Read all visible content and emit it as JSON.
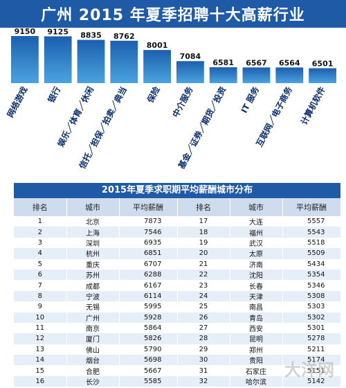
{
  "title": "广州 2015 年夏季招聘十大高薪行业",
  "chart_data": {
    "type": "bar",
    "title": "广州 2015 年夏季招聘十大高薪行业",
    "categories": [
      "网络游戏",
      "银行",
      "娱乐／体育／休闲",
      "信托／担保／拍卖／典当",
      "保险",
      "中介服务",
      "基金／证券／期货／投资",
      "IT 服务",
      "互联网／电子商务",
      "计算机软件"
    ],
    "values": [
      9150,
      9125,
      8835,
      8762,
      8001,
      7084,
      6581,
      6567,
      6564,
      6501
    ],
    "colors": {
      "bar_top": "#1c5fae",
      "bar_bottom": "#4aa3df",
      "label": "#0b2f6e"
    }
  },
  "table": {
    "title": "2015年夏季求职期平均薪酬城市分布",
    "headers": [
      "排名",
      "城市",
      "平均薪酬",
      "排名",
      "城市",
      "平均薪酬"
    ],
    "rows": [
      [
        "1",
        "北京",
        "7873",
        "17",
        "大连",
        "5557"
      ],
      [
        "2",
        "上海",
        "7546",
        "18",
        "福州",
        "5543"
      ],
      [
        "3",
        "深圳",
        "6935",
        "19",
        "武汉",
        "5518"
      ],
      [
        "4",
        "杭州",
        "6851",
        "20",
        "太原",
        "5509"
      ],
      [
        "5",
        "重庆",
        "6707",
        "21",
        "济南",
        "5434"
      ],
      [
        "6",
        "苏州",
        "6288",
        "22",
        "沈阳",
        "5354"
      ],
      [
        "7",
        "成都",
        "6167",
        "23",
        "长春",
        "5346"
      ],
      [
        "8",
        "宁波",
        "6114",
        "24",
        "天津",
        "5308"
      ],
      [
        "9",
        "无锡",
        "5995",
        "25",
        "南昌",
        "5303"
      ],
      [
        "10",
        "广州",
        "5928",
        "26",
        "青岛",
        "5302"
      ],
      [
        "11",
        "南京",
        "5864",
        "27",
        "西安",
        "5301"
      ],
      [
        "12",
        "厦门",
        "5826",
        "28",
        "昆明",
        "5278"
      ],
      [
        "13",
        "佛山",
        "5790",
        "29",
        "郑州",
        "5211"
      ],
      [
        "14",
        "烟台",
        "5698",
        "30",
        "贵阳",
        "5174"
      ],
      [
        "15",
        "合肥",
        "5667",
        "31",
        "石家庄",
        "5151"
      ],
      [
        "16",
        "长沙",
        "5585",
        "32",
        "哈尔滨",
        "5142"
      ]
    ]
  },
  "watermark": {
    "text": "大洋网",
    "color": "#b0b0b0"
  }
}
